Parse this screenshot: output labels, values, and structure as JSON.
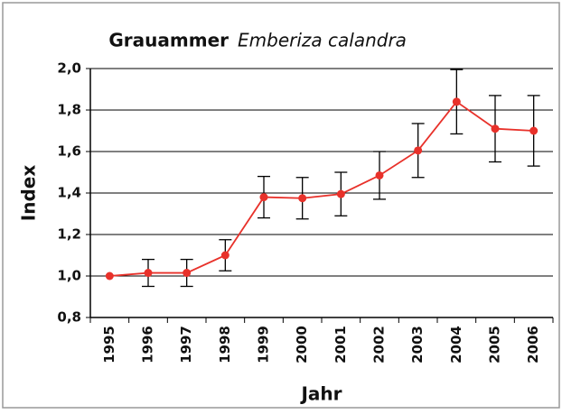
{
  "chart_data": {
    "type": "line",
    "title": "Grauammer",
    "subtitle": "Emberiza calandra",
    "x_label": "Jahr",
    "y_label": "Index",
    "categories": [
      "1995",
      "1996",
      "1997",
      "1998",
      "1999",
      "2000",
      "2001",
      "2002",
      "2003",
      "2004",
      "2005",
      "2006"
    ],
    "values": [
      1.0,
      1.015,
      1.015,
      1.1,
      1.38,
      1.375,
      1.395,
      1.485,
      1.605,
      1.84,
      1.71,
      1.7
    ],
    "errors": [
      null,
      0.065,
      0.065,
      0.075,
      0.1,
      0.1,
      0.105,
      0.115,
      0.13,
      0.155,
      0.16,
      0.17
    ],
    "color": "#e8312a",
    "ylim": [
      0.8,
      2.0
    ],
    "yticks": [
      {
        "value": 0.8,
        "label": "0,8"
      },
      {
        "value": 1.0,
        "label": "1,0"
      },
      {
        "value": 1.2,
        "label": "1,2"
      },
      {
        "value": 1.4,
        "label": "1,4"
      },
      {
        "value": 1.6,
        "label": "1,6"
      },
      {
        "value": 1.8,
        "label": "1,8"
      },
      {
        "value": 2.0,
        "label": "2,0"
      }
    ],
    "grid": true
  }
}
